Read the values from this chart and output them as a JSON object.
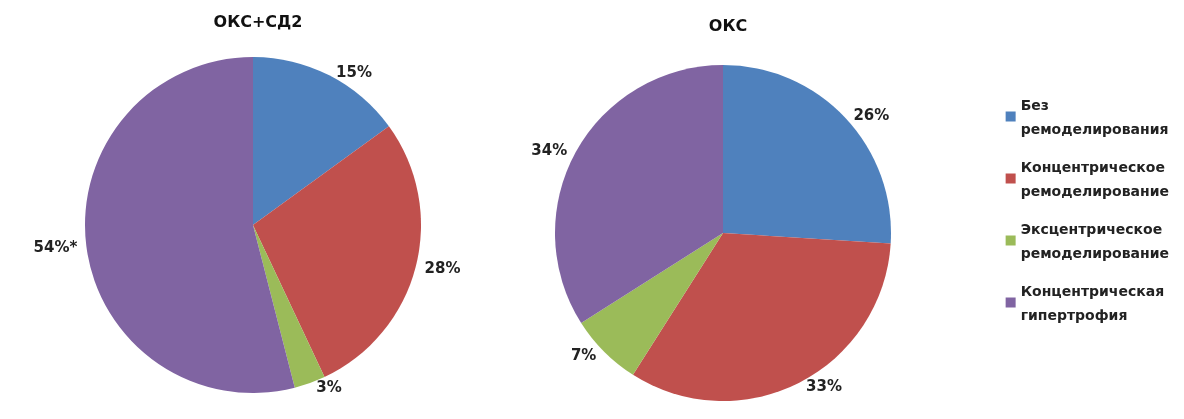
{
  "chart_data": {
    "type": "pie",
    "categories": [
      "Без ремоделирования",
      "Концентрическое ремоделирование",
      "Эксцентрическое ремоделирование",
      "Концентрическая гипертрофия"
    ],
    "colors": [
      "#4f81bd",
      "#c0504d",
      "#9bbb59",
      "#8064a2"
    ],
    "legend": "right",
    "series": [
      {
        "name": "ОКС+СД2",
        "values": [
          15,
          28,
          3,
          54
        ],
        "value_labels": [
          "15%",
          "28%",
          "3%",
          "54%*"
        ]
      },
      {
        "name": "ОКС",
        "values": [
          26,
          33,
          7,
          34
        ],
        "value_labels": [
          "26%",
          "33%",
          "7%",
          "34%"
        ]
      }
    ]
  }
}
